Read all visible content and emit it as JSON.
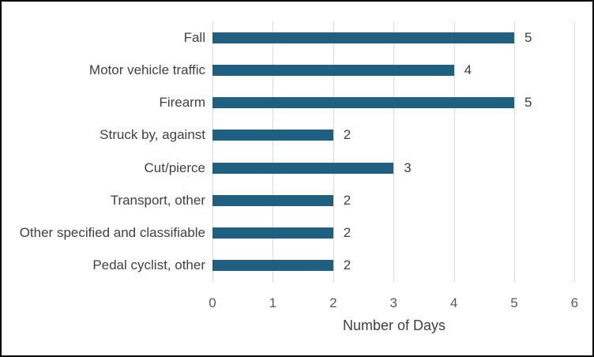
{
  "chart_data": {
    "type": "bar",
    "orientation": "horizontal",
    "title": "",
    "xlabel": "Number of Days",
    "ylabel": "",
    "categories": [
      "Fall",
      "Motor vehicle traffic",
      "Firearm",
      "Struck by, against",
      "Cut/pierce",
      "Transport, other",
      "Other specified and classifiable",
      "Pedal cyclist, other"
    ],
    "values": [
      5,
      4,
      5,
      2,
      3,
      2,
      2,
      2
    ],
    "data_labels": [
      "5",
      "4",
      "5",
      "2",
      "3",
      "2",
      "2",
      "2"
    ],
    "xlim": [
      0,
      6
    ],
    "xticks": [
      "0",
      "1",
      "2",
      "3",
      "4",
      "5",
      "6"
    ],
    "grid": "vertical-only",
    "legend": "none"
  },
  "colors": {
    "bar": "#1f5f7f",
    "gridline": "#d9d9d9",
    "tick_text": "#595959",
    "label_text": "#404040",
    "frame_border": "#000000",
    "background": "#ffffff"
  }
}
